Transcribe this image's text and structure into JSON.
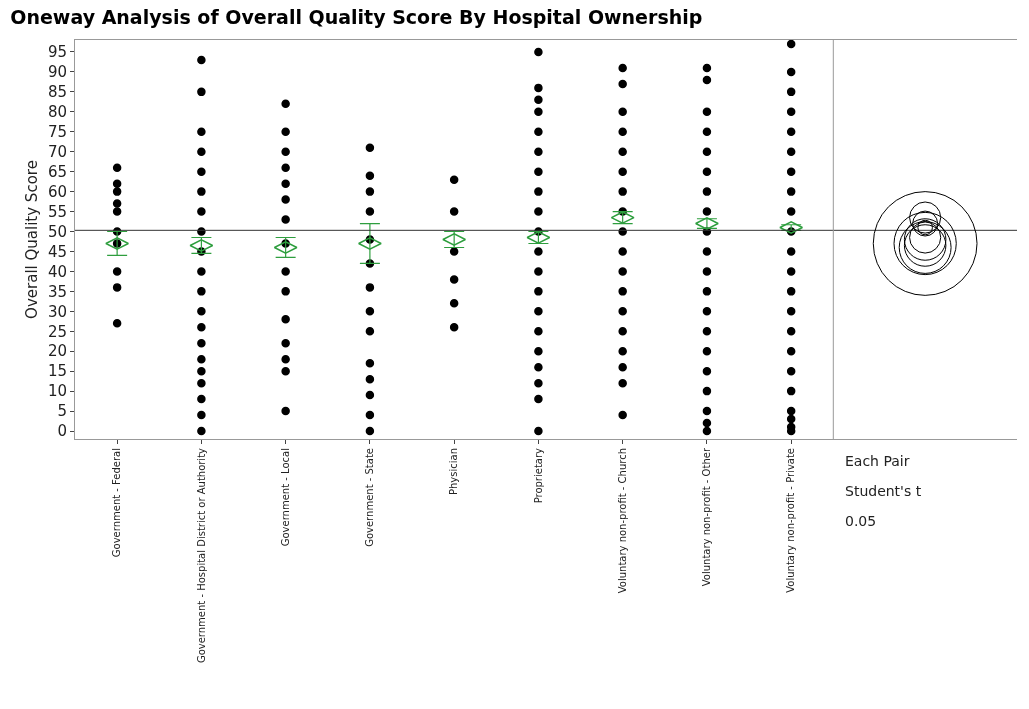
{
  "chart_data": {
    "type": "scatter",
    "title": "Oneway Analysis of Overall Quality Score By Hospital Ownership",
    "ylabel": "Overall Quality Score",
    "categories": [
      "Government - Federal",
      "Government - Hospital District or Authority",
      "Government - Local",
      "Government - State",
      "Physician",
      "Proprietary",
      "Voluntary non-profit - Church",
      "Voluntary non-profit - Other",
      "Voluntary non-profit - Private"
    ],
    "series": [
      {
        "color": "#000000",
        "marker": "circle",
        "x": [
          "Government - Federal",
          "Government - Federal",
          "Government - Federal",
          "Government - Federal",
          "Government - Federal",
          "Government - Federal",
          "Government - Federal",
          "Government - Federal",
          "Government - Federal",
          "Government - Federal",
          "Government - Hospital District or Authority",
          "Government - Hospital District or Authority",
          "Government - Hospital District or Authority",
          "Government - Hospital District or Authority",
          "Government - Hospital District or Authority",
          "Government - Hospital District or Authority",
          "Government - Hospital District or Authority",
          "Government - Hospital District or Authority",
          "Government - Hospital District or Authority",
          "Government - Hospital District or Authority",
          "Government - Hospital District or Authority",
          "Government - Hospital District or Authority",
          "Government - Hospital District or Authority",
          "Government - Hospital District or Authority",
          "Government - Hospital District or Authority",
          "Government - Hospital District or Authority",
          "Government - Hospital District or Authority",
          "Government - Hospital District or Authority",
          "Government - Hospital District or Authority",
          "Government - Hospital District or Authority",
          "Government - Local",
          "Government - Local",
          "Government - Local",
          "Government - Local",
          "Government - Local",
          "Government - Local",
          "Government - Local",
          "Government - Local",
          "Government - Local",
          "Government - Local",
          "Government - Local",
          "Government - Local",
          "Government - Local",
          "Government - Local",
          "Government - Local",
          "Government - State",
          "Government - State",
          "Government - State",
          "Government - State",
          "Government - State",
          "Government - State",
          "Government - State",
          "Government - State",
          "Government - State",
          "Government - State",
          "Government - State",
          "Government - State",
          "Government - State",
          "Government - State",
          "Physician",
          "Physician",
          "Physician",
          "Physician",
          "Physician",
          "Physician",
          "Proprietary",
          "Proprietary",
          "Proprietary",
          "Proprietary",
          "Proprietary",
          "Proprietary",
          "Proprietary",
          "Proprietary",
          "Proprietary",
          "Proprietary",
          "Proprietary",
          "Proprietary",
          "Proprietary",
          "Proprietary",
          "Proprietary",
          "Proprietary",
          "Proprietary",
          "Proprietary",
          "Proprietary",
          "Proprietary",
          "Voluntary non-profit - Church",
          "Voluntary non-profit - Church",
          "Voluntary non-profit - Church",
          "Voluntary non-profit - Church",
          "Voluntary non-profit - Church",
          "Voluntary non-profit - Church",
          "Voluntary non-profit - Church",
          "Voluntary non-profit - Church",
          "Voluntary non-profit - Church",
          "Voluntary non-profit - Church",
          "Voluntary non-profit - Church",
          "Voluntary non-profit - Church",
          "Voluntary non-profit - Church",
          "Voluntary non-profit - Church",
          "Voluntary non-profit - Church",
          "Voluntary non-profit - Church",
          "Voluntary non-profit - Church",
          "Voluntary non-profit - Church",
          "Voluntary non-profit - Other",
          "Voluntary non-profit - Other",
          "Voluntary non-profit - Other",
          "Voluntary non-profit - Other",
          "Voluntary non-profit - Other",
          "Voluntary non-profit - Other",
          "Voluntary non-profit - Other",
          "Voluntary non-profit - Other",
          "Voluntary non-profit - Other",
          "Voluntary non-profit - Other",
          "Voluntary non-profit - Other",
          "Voluntary non-profit - Other",
          "Voluntary non-profit - Other",
          "Voluntary non-profit - Other",
          "Voluntary non-profit - Other",
          "Voluntary non-profit - Other",
          "Voluntary non-profit - Other",
          "Voluntary non-profit - Other",
          "Voluntary non-profit - Other",
          "Voluntary non-profit - Other",
          "Voluntary non-profit - Private",
          "Voluntary non-profit - Private",
          "Voluntary non-profit - Private",
          "Voluntary non-profit - Private",
          "Voluntary non-profit - Private",
          "Voluntary non-profit - Private",
          "Voluntary non-profit - Private",
          "Voluntary non-profit - Private",
          "Voluntary non-profit - Private",
          "Voluntary non-profit - Private",
          "Voluntary non-profit - Private",
          "Voluntary non-profit - Private",
          "Voluntary non-profit - Private",
          "Voluntary non-profit - Private",
          "Voluntary non-profit - Private",
          "Voluntary non-profit - Private",
          "Voluntary non-profit - Private",
          "Voluntary non-profit - Private",
          "Voluntary non-profit - Private",
          "Voluntary non-profit - Private",
          "Voluntary non-profit - Private",
          "Voluntary non-profit - Private"
        ],
        "values": [
          27,
          36,
          40,
          47,
          50,
          55,
          57,
          60,
          62,
          66,
          0,
          4,
          8,
          12,
          15,
          18,
          22,
          26,
          30,
          35,
          40,
          45,
          50,
          55,
          60,
          65,
          70,
          75,
          85,
          93,
          5,
          15,
          18,
          22,
          28,
          35,
          40,
          47,
          53,
          58,
          62,
          66,
          70,
          75,
          82,
          0,
          4,
          9,
          13,
          17,
          25,
          30,
          36,
          42,
          48,
          55,
          60,
          64,
          71,
          26,
          32,
          38,
          45,
          55,
          63,
          0,
          8,
          12,
          16,
          20,
          25,
          30,
          35,
          40,
          45,
          50,
          55,
          60,
          65,
          70,
          75,
          80,
          83,
          86,
          95,
          4,
          12,
          16,
          20,
          25,
          30,
          35,
          40,
          45,
          50,
          55,
          60,
          65,
          70,
          75,
          80,
          87,
          91,
          0,
          2,
          5,
          10,
          15,
          20,
          25,
          30,
          35,
          40,
          45,
          50,
          55,
          60,
          65,
          70,
          75,
          80,
          88,
          91,
          0,
          1,
          3,
          5,
          10,
          15,
          20,
          25,
          30,
          35,
          40,
          45,
          50,
          55,
          60,
          65,
          70,
          75,
          80,
          85,
          90,
          97
        ]
      },
      {
        "color": "#2e9e3e",
        "marker": "diamond",
        "x": [
          "Government - Federal",
          "Government - Hospital District or Authority",
          "Government - Local",
          "Government - State",
          "Physician",
          "Proprietary",
          "Voluntary non-profit - Church",
          "Voluntary non-profit - Other",
          "Voluntary non-profit - Private"
        ],
        "values": [
          47,
          46.5,
          46,
          47,
          48,
          48.5,
          53.5,
          52,
          51
        ],
        "errors": [
          3,
          2,
          2.5,
          5,
          2,
          1.5,
          1.5,
          1.2,
          0.7
        ]
      }
    ],
    "ref_lines": [
      {
        "axis": "y",
        "value": 50.3
      }
    ],
    "ylim": [
      -2,
      98
    ],
    "yticks": [
      0,
      5,
      10,
      15,
      20,
      25,
      30,
      35,
      40,
      45,
      50,
      55,
      60,
      65,
      70,
      75,
      80,
      85,
      90,
      95
    ],
    "grid": false,
    "annotations": [
      "Each Pair",
      "Student's t",
      "0.05"
    ]
  }
}
